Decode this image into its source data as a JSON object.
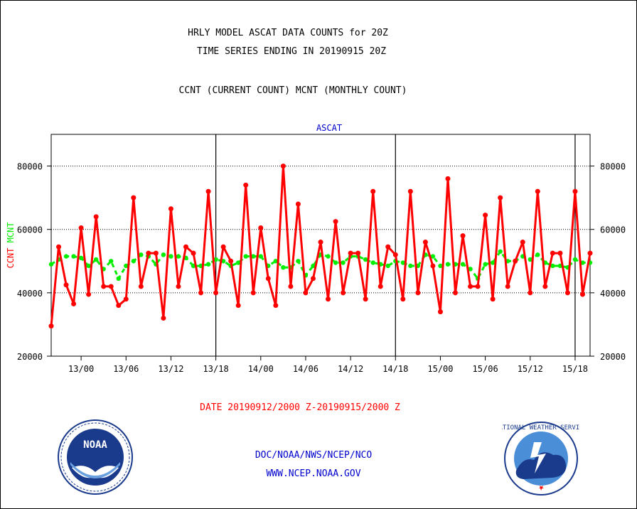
{
  "header": {
    "title_line1": "HRLY MODEL ASCAT DATA COUNTS for 20Z",
    "title_line2": "TIME SERIES ENDING IN 20190915 20Z",
    "subtitle": "CCNT (CURRENT COUNT) MCNT (MONTHLY COUNT)"
  },
  "footer": {
    "date_range": "DATE 20190912/2000 Z-20190915/2000 Z",
    "org_line": "DOC/NOAA/NWS/NCEP/NCO",
    "url": "WWW.NCEP.NOAA.GOV",
    "noaa_logo_text": "NOAA",
    "nws_logo_text": "NATIONAL WEATHER SERVICE"
  },
  "colors": {
    "ccnt": "#ff0000",
    "mcnt": "#00ee00",
    "panel_title": "#0000cc",
    "footer_text": "#0000cc",
    "date_text": "#ff0000"
  },
  "chart_data": {
    "type": "line",
    "title": "ASCAT",
    "ylabel_left_parts": [
      "CCNT",
      "MCNT"
    ],
    "ylim": [
      20000,
      90000
    ],
    "yticks": [
      20000,
      40000,
      60000,
      80000
    ],
    "ytick_labels": [
      "20000",
      "40000",
      "60000",
      "80000"
    ],
    "grid": "horizontal dotted at 40000, 60000, 80000",
    "xtick_labels": [
      "13/00",
      "13/06",
      "13/12",
      "13/18",
      "14/00",
      "14/06",
      "14/12",
      "14/18",
      "15/00",
      "15/06",
      "15/12",
      "15/18"
    ],
    "xtick_hours_from_start": [
      4,
      10,
      16,
      22,
      28,
      34,
      40,
      46,
      52,
      58,
      64,
      70
    ],
    "vertical_lines_hours_from_start": [
      22,
      46,
      70
    ],
    "x_hours": [
      0,
      1,
      2,
      3,
      4,
      5,
      6,
      7,
      8,
      9,
      10,
      11,
      12,
      13,
      14,
      15,
      16,
      17,
      18,
      19,
      20,
      21,
      22,
      23,
      24,
      25,
      26,
      27,
      28,
      29,
      30,
      31,
      32,
      33,
      34,
      35,
      36,
      37,
      38,
      39,
      40,
      41,
      42,
      43,
      44,
      45,
      46,
      47,
      48,
      49,
      50,
      51,
      52,
      53,
      54,
      55,
      56,
      57,
      58,
      59,
      60,
      61,
      62,
      63,
      64,
      65,
      66,
      67,
      68,
      69,
      70,
      71,
      72
    ],
    "series": [
      {
        "name": "CCNT",
        "values": [
          29500,
          54500,
          42500,
          36500,
          60500,
          39500,
          64000,
          42000,
          42000,
          36000,
          38000,
          70000,
          42000,
          52500,
          52500,
          32000,
          66500,
          42000,
          54500,
          52500,
          40000,
          72000,
          40000,
          54500,
          50000,
          36000,
          74000,
          40000,
          60500,
          44500,
          36000,
          80000,
          42000,
          68000,
          40000,
          44500,
          56000,
          38000,
          62500,
          40000,
          52500,
          52500,
          38000,
          72000,
          42000,
          54500,
          52000,
          38000,
          72000,
          40000,
          56000,
          48500,
          34000,
          76000,
          40000,
          58000,
          42000,
          42000,
          64500,
          38000,
          70000,
          42000,
          50000,
          56000,
          40000,
          72000,
          42000,
          52500,
          52500,
          40000,
          72000,
          39500,
          52500
        ]
      },
      {
        "name": "MCNT",
        "values": [
          49000,
          50500,
          51500,
          51500,
          51000,
          48500,
          50500,
          47500,
          50000,
          44500,
          48500,
          50000,
          52000,
          51500,
          49000,
          52000,
          51500,
          51500,
          51000,
          48500,
          48500,
          49000,
          50500,
          50000,
          48500,
          49500,
          51500,
          51500,
          51500,
          48500,
          50000,
          48000,
          48000,
          50000,
          45500,
          48500,
          52000,
          51500,
          49500,
          49500,
          51500,
          51500,
          50500,
          49500,
          49000,
          48500,
          50000,
          49500,
          48500,
          48500,
          52000,
          51500,
          48500,
          49000,
          49000,
          49000,
          47500,
          44500,
          49000,
          49500,
          53000,
          50000,
          50000,
          51500,
          50500,
          52000,
          49500,
          48500,
          48500,
          48000,
          50500,
          49500,
          49500
        ]
      }
    ]
  }
}
